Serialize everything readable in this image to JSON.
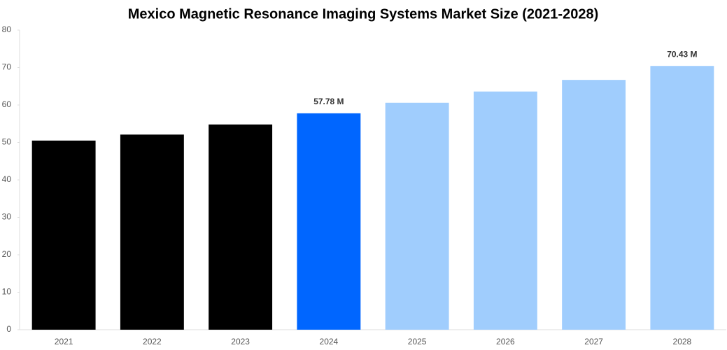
{
  "chart_data": {
    "type": "bar",
    "title": "Mexico Magnetic Resonance Imaging Systems Market Size (2021-2028)",
    "categories": [
      "2021",
      "2022",
      "2023",
      "2024",
      "2025",
      "2026",
      "2027",
      "2028"
    ],
    "values": [
      50.5,
      52.1,
      54.8,
      57.78,
      60.6,
      63.6,
      66.7,
      70.43
    ],
    "value_labels": [
      null,
      null,
      null,
      "57.78 M",
      null,
      null,
      null,
      "70.43 M"
    ],
    "colors": [
      "#000000",
      "#000000",
      "#000000",
      "#0066ff",
      "#a0cdfd",
      "#a0cdfd",
      "#a0cdfd",
      "#a0cdfd"
    ],
    "ylim": [
      0,
      80
    ],
    "yticks": [
      0,
      10,
      20,
      30,
      40,
      50,
      60,
      70,
      80
    ],
    "grid": false
  }
}
